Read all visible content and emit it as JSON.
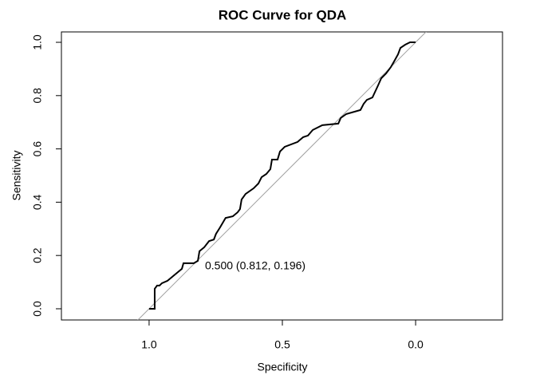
{
  "chart_data": {
    "type": "line",
    "title": "ROC Curve for QDA",
    "x_label": "Specificity",
    "y_label": "Sensitivity",
    "annotation": "0.500 (0.812, 0.196)",
    "xlim": [
      1.329,
      -0.326
    ],
    "ylim": [
      -0.042,
      1.039
    ],
    "xticks": [
      {
        "value": 1,
        "label": "1.0"
      },
      0.5,
      {
        "value": 0,
        "label": "0.0"
      }
    ],
    "yticks": [
      {
        "value": 0,
        "label": "0.0"
      },
      0.2,
      0.4,
      0.6,
      0.8,
      {
        "value": 1,
        "label": "1.0"
      }
    ],
    "x": [
      1.0,
      0.979,
      0.979,
      0.97,
      0.961,
      0.952,
      0.931,
      0.913,
      0.895,
      0.877,
      0.871,
      0.832,
      0.817,
      0.811,
      0.793,
      0.775,
      0.757,
      0.749,
      0.734,
      0.713,
      0.686,
      0.668,
      0.659,
      0.653,
      0.638,
      0.608,
      0.59,
      0.578,
      0.56,
      0.545,
      0.539,
      0.518,
      0.509,
      0.491,
      0.443,
      0.422,
      0.404,
      0.386,
      0.35,
      0.29,
      0.281,
      0.26,
      0.207,
      0.195,
      0.183,
      0.162,
      0.141,
      0.129,
      0.111,
      0.093,
      0.081,
      0.066,
      0.057,
      0.039,
      0.021,
      0.0
    ],
    "series": [
      {
        "name": "ROC",
        "color": "#000000",
        "values": [
          0,
          0,
          0.075,
          0.087,
          0.087,
          0.096,
          0.105,
          0.12,
          0.135,
          0.15,
          0.171,
          0.171,
          0.18,
          0.216,
          0.231,
          0.254,
          0.26,
          0.281,
          0.305,
          0.341,
          0.347,
          0.362,
          0.374,
          0.41,
          0.431,
          0.452,
          0.47,
          0.494,
          0.506,
          0.524,
          0.56,
          0.56,
          0.59,
          0.608,
          0.626,
          0.644,
          0.65,
          0.671,
          0.689,
          0.695,
          0.716,
          0.731,
          0.746,
          0.769,
          0.784,
          0.793,
          0.838,
          0.865,
          0.883,
          0.907,
          0.928,
          0.955,
          0.979,
          0.991,
          1.0,
          1.0
        ]
      }
    ],
    "reference_color": "#a0a0a0"
  }
}
